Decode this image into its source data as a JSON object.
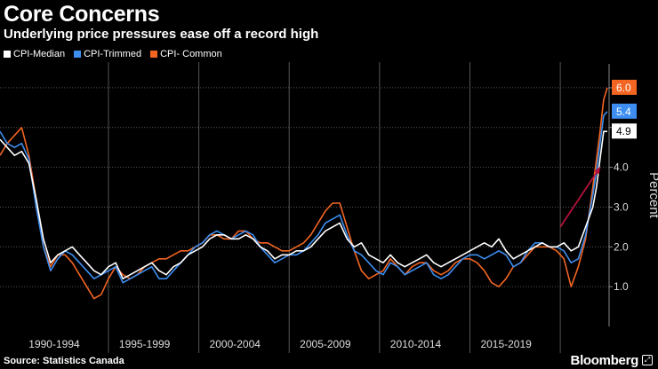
{
  "title": "Core Concerns",
  "subtitle": "Underlying price pressures ease off a record high",
  "source": "Source: Statistics Canada",
  "brand": "Bloomberg",
  "colors": {
    "median": "#ffffff",
    "trimmed": "#3d8ef0",
    "common": "#f26522",
    "arrow": "#b5123d",
    "grid": "#555555"
  },
  "chart_data": {
    "type": "line",
    "ylabel": "Percent",
    "ylim": [
      0,
      6.6
    ],
    "yticks": [
      1.0,
      2.0,
      3.0,
      4.0,
      5.0,
      6.0
    ],
    "ytick_labels": [
      "1.0",
      "2.0",
      "3.0",
      "4.0",
      "",
      ""
    ],
    "xlim": [
      1989.0,
      2022.7
    ],
    "period_dividers": [
      1995,
      2000,
      2005,
      2010,
      2015,
      2020
    ],
    "categories": [
      "1990-1994",
      "1995-1999",
      "2000-2004",
      "2005-2009",
      "2010-2014",
      "2015-2019"
    ],
    "category_centers": [
      1992,
      1997,
      2002,
      2007,
      2012,
      2017
    ],
    "grid": true,
    "legend_position": "top-left",
    "series": [
      {
        "name": "CPI-Median",
        "key": "median",
        "end_label": "4.9",
        "x": [
          1989.0,
          1989.4,
          1989.8,
          1990.2,
          1990.6,
          1991.0,
          1991.4,
          1991.8,
          1992.2,
          1992.6,
          1993.0,
          1993.4,
          1993.8,
          1994.2,
          1994.6,
          1995.0,
          1995.4,
          1995.8,
          1996.2,
          1996.6,
          1997.0,
          1997.4,
          1997.8,
          1998.2,
          1998.6,
          1999.0,
          1999.4,
          1999.8,
          2000.2,
          2000.6,
          2001.0,
          2001.4,
          2001.8,
          2002.2,
          2002.6,
          2003.0,
          2003.4,
          2003.8,
          2004.2,
          2004.6,
          2005.0,
          2005.4,
          2005.8,
          2006.2,
          2006.6,
          2007.0,
          2007.4,
          2007.8,
          2008.2,
          2008.6,
          2009.0,
          2009.4,
          2009.8,
          2010.2,
          2010.6,
          2011.0,
          2011.4,
          2011.8,
          2012.2,
          2012.6,
          2013.0,
          2013.4,
          2013.8,
          2014.2,
          2014.6,
          2015.0,
          2015.4,
          2015.8,
          2016.2,
          2016.6,
          2017.0,
          2017.4,
          2017.8,
          2018.2,
          2018.6,
          2019.0,
          2019.4,
          2019.8,
          2020.2,
          2020.6,
          2021.0,
          2021.4,
          2021.8,
          2022.0,
          2022.2,
          2022.4,
          2022.6
        ],
        "y": [
          4.7,
          4.5,
          4.3,
          4.4,
          4.1,
          3.2,
          2.2,
          1.6,
          1.8,
          1.9,
          2.0,
          1.8,
          1.6,
          1.4,
          1.3,
          1.5,
          1.6,
          1.2,
          1.3,
          1.4,
          1.5,
          1.6,
          1.4,
          1.3,
          1.5,
          1.6,
          1.8,
          1.9,
          2.0,
          2.2,
          2.3,
          2.3,
          2.2,
          2.2,
          2.3,
          2.2,
          2.0,
          1.9,
          1.7,
          1.8,
          1.8,
          1.9,
          1.9,
          2.0,
          2.2,
          2.4,
          2.5,
          2.6,
          2.2,
          2.0,
          2.1,
          1.8,
          1.7,
          1.6,
          1.8,
          1.6,
          1.5,
          1.6,
          1.7,
          1.8,
          1.6,
          1.5,
          1.6,
          1.7,
          1.8,
          1.9,
          2.0,
          2.1,
          2.0,
          2.2,
          1.9,
          1.7,
          1.8,
          1.9,
          2.0,
          2.1,
          2.0,
          2.0,
          2.1,
          1.9,
          2.0,
          2.5,
          3.0,
          3.5,
          4.2,
          4.9,
          4.9
        ]
      },
      {
        "name": "CPI-Trimmed",
        "key": "trimmed",
        "end_label": "5.4",
        "x": [
          1989.0,
          1989.4,
          1989.8,
          1990.2,
          1990.6,
          1991.0,
          1991.4,
          1991.8,
          1992.2,
          1992.6,
          1993.0,
          1993.4,
          1993.8,
          1994.2,
          1994.6,
          1995.0,
          1995.4,
          1995.8,
          1996.2,
          1996.6,
          1997.0,
          1997.4,
          1997.8,
          1998.2,
          1998.6,
          1999.0,
          1999.4,
          1999.8,
          2000.2,
          2000.6,
          2001.0,
          2001.4,
          2001.8,
          2002.2,
          2002.6,
          2003.0,
          2003.4,
          2003.8,
          2004.2,
          2004.6,
          2005.0,
          2005.4,
          2005.8,
          2006.2,
          2006.6,
          2007.0,
          2007.4,
          2007.8,
          2008.2,
          2008.6,
          2009.0,
          2009.4,
          2009.8,
          2010.2,
          2010.6,
          2011.0,
          2011.4,
          2011.8,
          2012.2,
          2012.6,
          2013.0,
          2013.4,
          2013.8,
          2014.2,
          2014.6,
          2015.0,
          2015.4,
          2015.8,
          2016.2,
          2016.6,
          2017.0,
          2017.4,
          2017.8,
          2018.2,
          2018.6,
          2019.0,
          2019.4,
          2019.8,
          2020.2,
          2020.6,
          2021.0,
          2021.4,
          2021.8,
          2022.0,
          2022.2,
          2022.4,
          2022.6
        ],
        "y": [
          4.9,
          4.6,
          4.5,
          4.6,
          4.2,
          3.0,
          2.0,
          1.4,
          1.7,
          1.9,
          1.8,
          1.6,
          1.4,
          1.2,
          1.3,
          1.4,
          1.5,
          1.1,
          1.2,
          1.3,
          1.4,
          1.5,
          1.2,
          1.2,
          1.4,
          1.6,
          1.8,
          2.0,
          2.1,
          2.3,
          2.4,
          2.3,
          2.2,
          2.3,
          2.4,
          2.3,
          2.0,
          1.8,
          1.6,
          1.7,
          1.8,
          1.8,
          1.9,
          2.1,
          2.3,
          2.6,
          2.7,
          2.8,
          2.3,
          1.9,
          1.8,
          1.6,
          1.4,
          1.3,
          1.6,
          1.5,
          1.3,
          1.4,
          1.5,
          1.6,
          1.3,
          1.2,
          1.3,
          1.5,
          1.7,
          1.8,
          1.8,
          1.7,
          1.8,
          1.9,
          1.8,
          1.5,
          1.6,
          1.9,
          2.1,
          2.1,
          2.0,
          2.0,
          1.9,
          1.6,
          1.7,
          2.3,
          3.3,
          3.9,
          4.6,
          5.3,
          5.4
        ]
      },
      {
        "name": "CPI- Common",
        "key": "common",
        "end_label": "6.0",
        "x": [
          1989.0,
          1989.4,
          1989.8,
          1990.2,
          1990.6,
          1991.0,
          1991.4,
          1991.8,
          1992.2,
          1992.6,
          1993.0,
          1993.4,
          1993.8,
          1994.2,
          1994.6,
          1995.0,
          1995.4,
          1995.8,
          1996.2,
          1996.6,
          1997.0,
          1997.4,
          1997.8,
          1998.2,
          1998.6,
          1999.0,
          1999.4,
          1999.8,
          2000.2,
          2000.6,
          2001.0,
          2001.4,
          2001.8,
          2002.2,
          2002.6,
          2003.0,
          2003.4,
          2003.8,
          2004.2,
          2004.6,
          2005.0,
          2005.4,
          2005.8,
          2006.2,
          2006.6,
          2007.0,
          2007.4,
          2007.8,
          2008.2,
          2008.6,
          2009.0,
          2009.4,
          2009.8,
          2010.2,
          2010.6,
          2011.0,
          2011.4,
          2011.8,
          2012.2,
          2012.6,
          2013.0,
          2013.4,
          2013.8,
          2014.2,
          2014.6,
          2015.0,
          2015.4,
          2015.8,
          2016.2,
          2016.6,
          2017.0,
          2017.4,
          2017.8,
          2018.2,
          2018.6,
          2019.0,
          2019.4,
          2019.8,
          2020.2,
          2020.6,
          2021.0,
          2021.4,
          2021.8,
          2022.0,
          2022.2,
          2022.4,
          2022.6
        ],
        "y": [
          4.3,
          4.6,
          4.8,
          5.0,
          4.3,
          3.2,
          2.0,
          1.5,
          1.8,
          1.8,
          1.6,
          1.3,
          1.0,
          0.7,
          0.8,
          1.2,
          1.5,
          1.3,
          1.2,
          1.3,
          1.5,
          1.6,
          1.7,
          1.7,
          1.8,
          1.9,
          1.9,
          2.0,
          2.1,
          2.3,
          2.3,
          2.2,
          2.2,
          2.4,
          2.4,
          2.2,
          2.1,
          2.1,
          2.0,
          1.9,
          1.9,
          2.0,
          2.1,
          2.3,
          2.6,
          2.9,
          3.1,
          3.1,
          2.5,
          1.9,
          1.4,
          1.2,
          1.3,
          1.4,
          1.7,
          1.5,
          1.3,
          1.5,
          1.6,
          1.6,
          1.4,
          1.3,
          1.4,
          1.6,
          1.7,
          1.7,
          1.6,
          1.4,
          1.1,
          1.0,
          1.2,
          1.5,
          1.6,
          1.8,
          2.0,
          2.0,
          2.0,
          1.9,
          1.7,
          1.0,
          1.5,
          2.2,
          3.5,
          4.2,
          4.9,
          5.7,
          6.0
        ]
      }
    ],
    "annotation": {
      "type": "arrow",
      "from": [
        2020.0,
        2.5
      ],
      "to": [
        2022.2,
        4.0
      ]
    }
  }
}
